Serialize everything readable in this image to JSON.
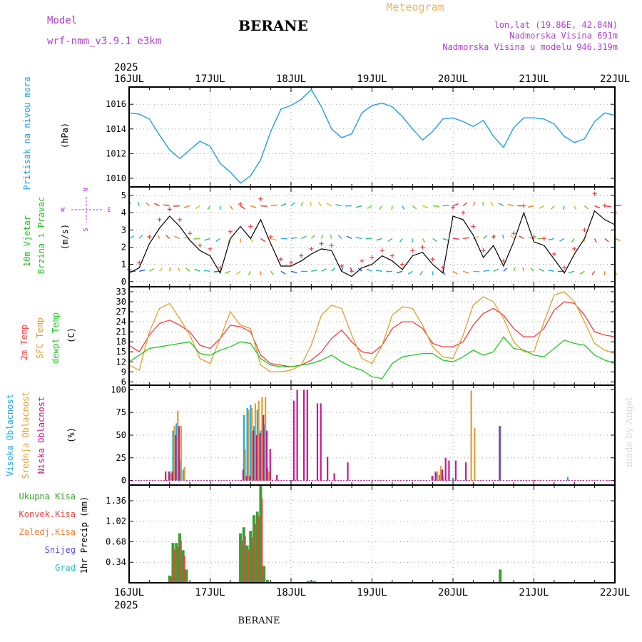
{
  "header": {
    "model_label": "Model",
    "model_value": "wrf-nmm_v3.9.1 e3km",
    "title": "BERANE",
    "meteogram": "Meteogram",
    "lonlat": "lon,lat (19.86E, 42.84N)",
    "altitude": "Nadmorska Visina 691m",
    "model_altitude": "Nadmorska Visina u modelu 946.319m",
    "year_top": "2025",
    "year_bottom": "2025",
    "footer": "BERANE",
    "credit": "made by Angel"
  },
  "colors": {
    "pressure": "#1fa0e0",
    "temp2m": "#f04040",
    "sfc": "#e0a030",
    "dewpt": "#20c820",
    "high_cloud": "#20a8e0",
    "mid_cloud": "#e0a030",
    "low_cloud": "#c8188c",
    "rain_total": "#3aa030",
    "rain_conv": "#f04040",
    "frozen": "#f08030",
    "snow": "#5050e0",
    "hail": "#20c0c0",
    "wind_speed": "#000000",
    "wind_marker": "#f04040",
    "purple": "#b040d0"
  },
  "chart_data": {
    "type": "line",
    "x_unit": "hours since 16JUL 00Z",
    "x_range": [
      0,
      144
    ],
    "dates": [
      "16JUL",
      "17JUL",
      "18JUL",
      "19JUL",
      "20JUL",
      "21JUL",
      "22JUL"
    ],
    "panels": [
      {
        "id": "pressure",
        "ylabel": [
          "Pritisak na nivou mora",
          "(hPa)"
        ],
        "yticks": [
          1010,
          1012,
          1014,
          1016
        ],
        "ylim": [
          1009.3,
          1017.4
        ],
        "series": [
          {
            "name": "Pritisak na nivou mora",
            "color_key": "pressure",
            "x": [
              0,
              3,
              6,
              9,
              12,
              15,
              18,
              21,
              24,
              27,
              30,
              33,
              36,
              39,
              42,
              45,
              48,
              51,
              54,
              57,
              60,
              63,
              66,
              69,
              72,
              75,
              78,
              81,
              84,
              87,
              90,
              93,
              96,
              99,
              102,
              105,
              108,
              111,
              114,
              117,
              120,
              123,
              126,
              129,
              132,
              135,
              138,
              141,
              144
            ],
            "values": [
              1015.3,
              1015.2,
              1014.8,
              1013.5,
              1012.3,
              1011.6,
              1012.3,
              1013.0,
              1012.6,
              1011.2,
              1010.5,
              1009.6,
              1010.2,
              1011.5,
              1013.8,
              1015.6,
              1015.9,
              1016.4,
              1017.2,
              1015.8,
              1014.0,
              1013.3,
              1013.6,
              1015.3,
              1015.9,
              1016.1,
              1015.8,
              1015.0,
              1014.0,
              1013.1,
              1013.8,
              1014.8,
              1014.9,
              1014.6,
              1014.2,
              1014.7,
              1013.4,
              1012.5,
              1014.1,
              1014.9,
              1014.9,
              1014.8,
              1014.4,
              1013.4,
              1012.9,
              1013.2,
              1014.6,
              1015.3,
              1015.1
            ]
          }
        ]
      },
      {
        "id": "wind",
        "ylabel": [
          "10m Vjetar",
          "Brzina i Pravac",
          "(m/s)"
        ],
        "compass": [
          "N",
          "W",
          "E",
          "S"
        ],
        "yticks": [
          0,
          1,
          2,
          3,
          4,
          5
        ],
        "ylim": [
          -0.3,
          5.5
        ],
        "series": [
          {
            "name": "Brzina",
            "color_key": "wind_speed",
            "x": [
              0,
              3,
              6,
              9,
              12,
              15,
              18,
              21,
              24,
              27,
              30,
              33,
              36,
              39,
              42,
              45,
              48,
              51,
              54,
              57,
              60,
              63,
              66,
              69,
              72,
              75,
              78,
              81,
              84,
              87,
              90,
              93,
              96,
              99,
              102,
              105,
              108,
              111,
              114,
              117,
              120,
              123,
              126,
              129,
              132,
              135,
              138,
              141,
              144
            ],
            "values": [
              0.5,
              0.8,
              2.2,
              3.1,
              3.8,
              3.2,
              2.4,
              1.8,
              1.5,
              0.5,
              2.5,
              3.2,
              2.5,
              3.6,
              2.2,
              0.9,
              0.9,
              1.2,
              1.6,
              1.9,
              1.8,
              0.6,
              0.3,
              0.8,
              1.0,
              1.5,
              1.2,
              0.7,
              1.5,
              1.7,
              1.0,
              0.5,
              3.8,
              3.6,
              2.7,
              1.4,
              2.1,
              0.9,
              2.3,
              4.0,
              2.3,
              2.1,
              1.3,
              0.5,
              1.6,
              2.5,
              4.1,
              3.6,
              3.3
            ]
          },
          {
            "name": "Pravac",
            "color_key": "wind_marker",
            "x": [
              0,
              3,
              6,
              9,
              12,
              15,
              18,
              21,
              24,
              27,
              30,
              33,
              36,
              39,
              42,
              45,
              48,
              51,
              54,
              57,
              60,
              63,
              66,
              69,
              72,
              75,
              78,
              81,
              84,
              87,
              90,
              93,
              96,
              99,
              102,
              105,
              108,
              111,
              114,
              117,
              120,
              123,
              126,
              129,
              132,
              135,
              138,
              141,
              144
            ],
            "values": [
              0.7,
              1.1,
              2.6,
              3.6,
              4.2,
              3.6,
              2.8,
              2.1,
              1.9,
              0.8,
              2.9,
              4.5,
              3.2,
              4.8,
              2.6,
              1.3,
              1.1,
              1.5,
              1.9,
              2.2,
              2.1,
              0.9,
              0.6,
              1.2,
              1.4,
              1.8,
              1.5,
              1.0,
              1.8,
              2.0,
              1.3,
              0.8,
              4.3,
              4.0,
              3.2,
              1.8,
              2.6,
              1.2,
              2.8,
              4.4,
              2.6,
              2.5,
              1.6,
              0.8,
              1.9,
              3.0,
              5.1,
              4.4,
              4.0
            ]
          }
        ]
      },
      {
        "id": "temperature",
        "ylabel": [
          "2m Temp",
          "SFC Temp",
          "dewpt Temp",
          "(C)"
        ],
        "yticks": [
          6,
          9,
          12,
          15,
          18,
          21,
          24,
          27,
          30,
          33
        ],
        "ylim": [
          5,
          34.5
        ],
        "series": [
          {
            "name": "2m Temp",
            "color_key": "temp2m",
            "x": [
              0,
              3,
              6,
              9,
              12,
              15,
              18,
              21,
              24,
              27,
              30,
              33,
              36,
              39,
              42,
              45,
              48,
              51,
              54,
              57,
              60,
              63,
              66,
              69,
              72,
              75,
              78,
              81,
              84,
              87,
              90,
              93,
              96,
              99,
              102,
              105,
              108,
              111,
              114,
              117,
              120,
              123,
              126,
              129,
              132,
              135,
              138,
              141,
              144
            ],
            "values": [
              17,
              15,
              20,
              23.5,
              24.5,
              23,
              21,
              17,
              16,
              19,
              23,
              22.5,
              21,
              14,
              11.5,
              11,
              10.5,
              11,
              12.5,
              15,
              19,
              21.5,
              18,
              15,
              14.5,
              17,
              22,
              24,
              24,
              22,
              17.5,
              16.5,
              16.5,
              18,
              23,
              26.5,
              28,
              26,
              22,
              19.5,
              19.5,
              22,
              27.5,
              30,
              29.5,
              26,
              21,
              20,
              19.5
            ]
          },
          {
            "name": "SFC Temp",
            "color_key": "sfc",
            "x": [
              0,
              3,
              6,
              9,
              12,
              15,
              18,
              21,
              24,
              27,
              30,
              33,
              36,
              39,
              42,
              45,
              48,
              51,
              54,
              57,
              60,
              63,
              66,
              69,
              72,
              75,
              78,
              81,
              84,
              87,
              90,
              93,
              96,
              99,
              102,
              105,
              108,
              111,
              114,
              117,
              120,
              123,
              126,
              129,
              132,
              135,
              138,
              141,
              144
            ],
            "values": [
              11,
              9.5,
              21,
              28,
              29.5,
              25,
              20,
              13,
              11.5,
              19,
              27,
              23,
              22,
              11,
              9,
              9,
              9.5,
              11,
              17,
              26,
              29,
              28,
              20,
              13,
              11.5,
              17,
              26,
              28.5,
              28,
              23,
              16.5,
              13.5,
              13,
              20,
              29,
              31.5,
              30,
              25,
              18,
              15,
              15,
              24,
              32,
              33,
              30,
              24,
              17.5,
              15.5,
              14.5
            ]
          },
          {
            "name": "dewpt Temp",
            "color_key": "dewpt",
            "x": [
              0,
              3,
              6,
              9,
              12,
              15,
              18,
              21,
              24,
              27,
              30,
              33,
              36,
              39,
              42,
              45,
              48,
              51,
              54,
              57,
              60,
              63,
              66,
              69,
              72,
              75,
              78,
              81,
              84,
              87,
              90,
              93,
              96,
              99,
              102,
              105,
              108,
              111,
              114,
              117,
              120,
              123,
              126,
              129,
              132,
              135,
              138,
              141,
              144
            ],
            "values": [
              12,
              14,
              16,
              16.5,
              17,
              17.5,
              18,
              14.5,
              14,
              15.5,
              16.5,
              18,
              17.5,
              13,
              11,
              10.5,
              10.5,
              11,
              11.5,
              12.5,
              14,
              12,
              10.5,
              9.5,
              7.5,
              7,
              11.5,
              13.5,
              14,
              14.5,
              14.5,
              12.5,
              12,
              13.5,
              15.5,
              14,
              15,
              19.5,
              16,
              15.5,
              14,
              13.5,
              16,
              18.5,
              17.5,
              17,
              14,
              12.5,
              11.5
            ]
          }
        ]
      },
      {
        "id": "clouds",
        "ylabel": [
          "Visoka Oblacnost",
          "Srednja Oblacnost",
          "Niska Oblacnost",
          "(%)"
        ],
        "yticks": [
          0,
          25,
          50,
          75,
          100
        ],
        "ylim": [
          -5,
          105
        ],
        "bars": [
          {
            "name": "Visoka Oblacnost",
            "color_key": "high_cloud",
            "x": [
              12,
              13,
              14,
              15,
              16,
              34,
              35,
              36,
              37,
              38,
              39,
              40,
              41,
              90,
              91,
              92,
              93,
              96,
              110,
              130
            ],
            "values": [
              10,
              55,
              63,
              22,
              12,
              72,
              80,
              83,
              60,
              78,
              55,
              62,
              14,
              5,
              8,
              6,
              4,
              3,
              60,
              4
            ]
          },
          {
            "name": "Srednja Oblacnost",
            "color_key": "mid_cloud",
            "x": [
              12.4,
              13.4,
              14.4,
              15.4,
              16.4,
              34.4,
              35.4,
              36.4,
              37.4,
              38.4,
              39.4,
              40.4,
              41.4,
              91.4,
              92.4,
              101.4,
              102.4
            ],
            "values": [
              8,
              60,
              77,
              60,
              15,
              35,
              78,
              80,
              85,
              88,
              92,
              92,
              10,
              10,
              16,
              99,
              58
            ]
          },
          {
            "name": "Niska Oblacnost",
            "color_key": "low_cloud",
            "x": [
              10.8,
              11.8,
              12.8,
              13.8,
              14.8,
              33.8,
              34.8,
              35.8,
              36.8,
              37.8,
              38.8,
              39.8,
              40.8,
              41.8,
              43.8,
              48.8,
              49.8,
              51.8,
              52.8,
              55.8,
              56.8,
              58.8,
              60.8,
              64.8,
              89.8,
              90.8,
              92.8,
              93.8,
              94.8,
              96.8,
              99.8,
              109.8
            ],
            "values": [
              10,
              10,
              10,
              50,
              60,
              12,
              5,
              5,
              55,
              50,
              52,
              72,
              55,
              35,
              6,
              88,
              100,
              100,
              100,
              85,
              85,
              26,
              8,
              20,
              5,
              10,
              12,
              25,
              22,
              22,
              20,
              60
            ]
          }
        ]
      },
      {
        "id": "precip",
        "ylabel": [
          "1hr Precip (mm)"
        ],
        "legend": [
          "Ukupna Kisa",
          "Konvek.Kisa",
          "Zaledj.Kisa",
          "Snijeg",
          "Grad"
        ],
        "yticks": [
          0.34,
          0.68,
          1.02,
          1.36
        ],
        "ylim": [
          0,
          1.62
        ],
        "bars": [
          {
            "name": "Ukupna Kisa",
            "color_key": "rain_total",
            "x": [
              12,
              13,
              14,
              15,
              16,
              17,
              33,
              34,
              35,
              36,
              37,
              38,
              39,
              40,
              41,
              53,
              54,
              55,
              110
            ],
            "values": [
              0.12,
              0.66,
              0.66,
              0.82,
              0.54,
              0.22,
              0.82,
              0.92,
              0.62,
              0.86,
              1.12,
              1.18,
              1.62,
              0.28,
              0.05,
              0.03,
              0.04,
              0.03,
              0.22
            ]
          },
          {
            "name": "Konvek.Kisa",
            "color_key": "rain_conv",
            "x": [
              12.4,
              13.4,
              14.4,
              15.4,
              16.4,
              33.4,
              34.4,
              35.4,
              36.4,
              37.4,
              38.4,
              39.4
            ],
            "values": [
              0.1,
              0.55,
              0.6,
              0.7,
              0.45,
              0.7,
              0.78,
              0.55,
              0.75,
              0.98,
              1.1,
              1.4
            ]
          }
        ]
      }
    ]
  }
}
